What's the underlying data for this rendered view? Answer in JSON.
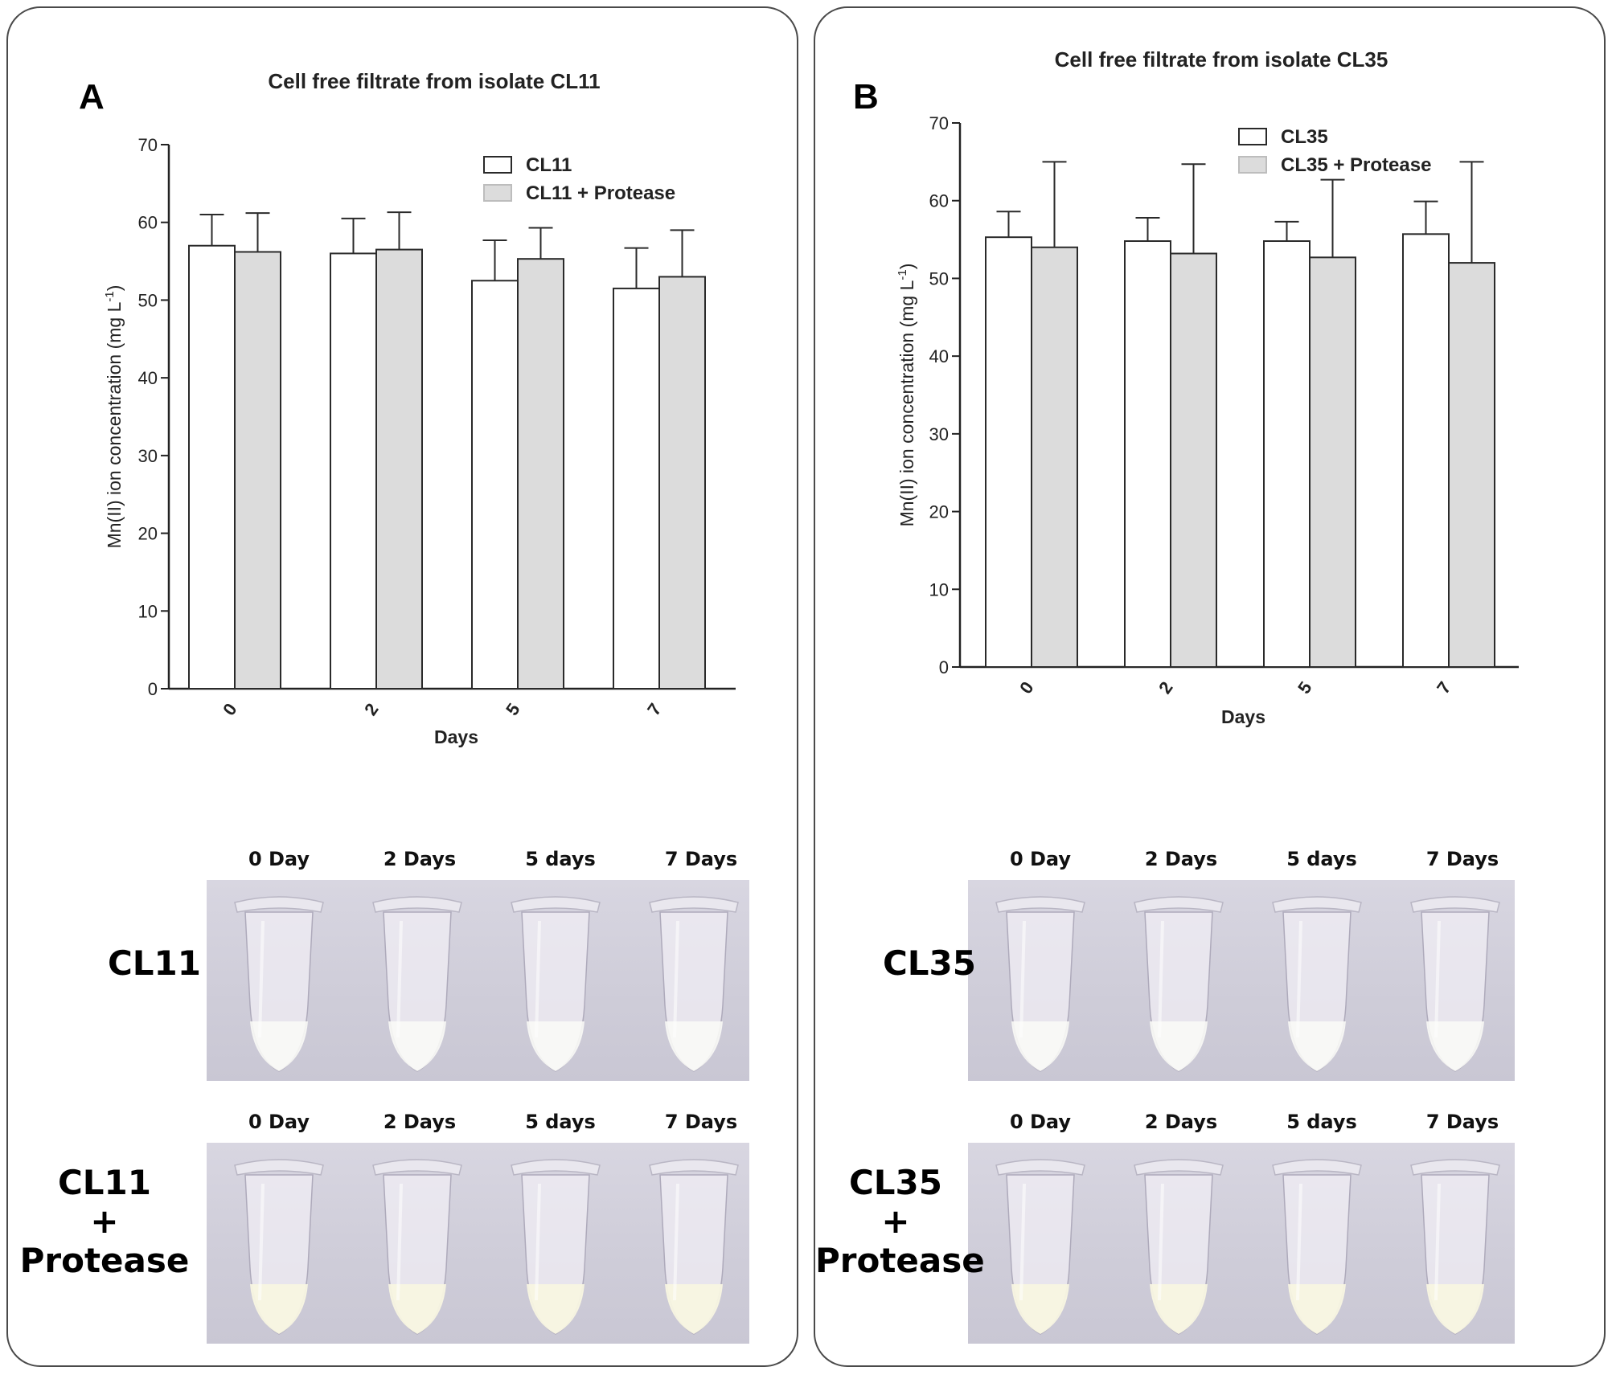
{
  "panels": [
    {
      "letter": "A",
      "chart_title": "Cell free filtrate from isolate CL11",
      "ylabel": "Mn(II) ion concentration (mg L",
      "ylabel_sup": "-1",
      "ylabel_close": ")",
      "xlabel": "Days",
      "photo_labels": [
        "0 Day",
        "2 Days",
        "5 days",
        "7 Days"
      ],
      "row1_label": "CL11",
      "row2_label_lines": [
        "CL11",
        "+",
        "Protease"
      ]
    },
    {
      "letter": "B",
      "chart_title": "Cell free filtrate from isolate CL35",
      "ylabel": "Mn(II) ion concentration (mg L",
      "ylabel_sup": "-1",
      "ylabel_close": ")",
      "xlabel": "Days",
      "photo_labels": [
        "0 Day",
        "2 Days",
        "5 days",
        "7 Days"
      ],
      "row1_label": "CL35",
      "row2_label_lines": [
        "CL35",
        "+",
        "Protease"
      ]
    }
  ],
  "colors": {
    "series1": "#ffffff",
    "series2": "#dcdcdc",
    "axis": "#222222"
  },
  "chart_data": [
    {
      "type": "bar",
      "title": "Cell free filtrate from isolate CL11",
      "xlabel": "Days",
      "ylabel": "Mn(II) ion concentration (mg L-1)",
      "categories": [
        "0",
        "2",
        "5",
        "7"
      ],
      "ylim": [
        0,
        70
      ],
      "yticks": [
        0,
        10,
        20,
        30,
        40,
        50,
        60,
        70
      ],
      "legend_position": "top-right",
      "series": [
        {
          "name": "CL11",
          "values": [
            57,
            56,
            52.5,
            51.5
          ],
          "errors": [
            4,
            4.5,
            5.2,
            5.2
          ]
        },
        {
          "name": "CL11 + Protease",
          "values": [
            56.2,
            56.5,
            55.3,
            53
          ],
          "errors": [
            5,
            4.8,
            4,
            6
          ]
        }
      ]
    },
    {
      "type": "bar",
      "title": "Cell free filtrate from isolate CL35",
      "xlabel": "Days",
      "ylabel": "Mn(II) ion concentration (mg L-1)",
      "categories": [
        "0",
        "2",
        "5",
        "7"
      ],
      "ylim": [
        0,
        70
      ],
      "yticks": [
        0,
        10,
        20,
        30,
        40,
        50,
        60,
        70
      ],
      "legend_position": "top-right",
      "series": [
        {
          "name": "CL35",
          "values": [
            55.3,
            54.8,
            54.8,
            55.7
          ],
          "errors": [
            3.3,
            3,
            2.5,
            4.2
          ]
        },
        {
          "name": "CL35 + Protease",
          "values": [
            54,
            53.2,
            52.7,
            52
          ],
          "errors": [
            11,
            11.5,
            10,
            13
          ]
        }
      ]
    }
  ]
}
